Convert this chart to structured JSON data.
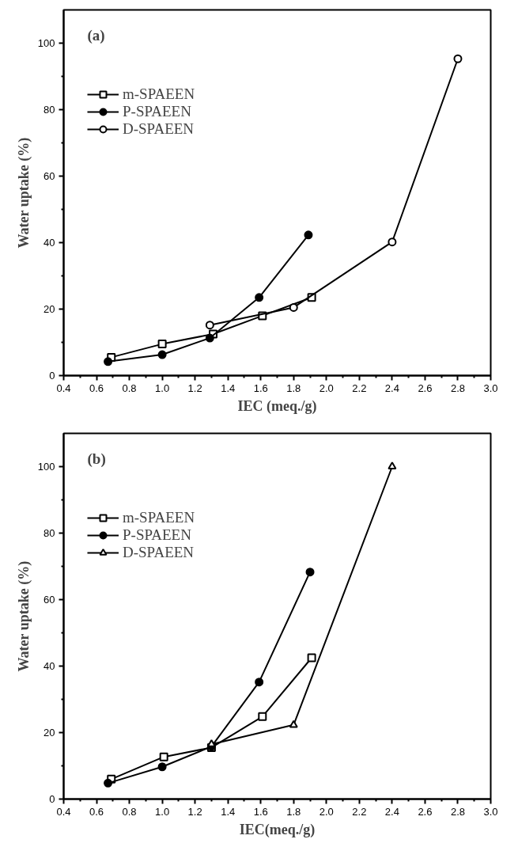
{
  "chart_data": [
    {
      "type": "line",
      "annotations": [
        "(a)"
      ],
      "xlabel": "IEC (meq./g)",
      "ylabel": "Water uptake (%)",
      "xlim": [
        0.4,
        3.0
      ],
      "xticks": [
        {
          "value": 0.4,
          "label": "0.4"
        },
        {
          "value": 0.6,
          "label": "0.6"
        },
        {
          "value": 0.8,
          "label": "0.8"
        },
        {
          "value": 1.0,
          "label": "1.0"
        },
        {
          "value": 1.2,
          "label": "1.2"
        },
        {
          "value": 1.4,
          "label": "1.4"
        },
        {
          "value": 1.6,
          "label": "1.6"
        },
        {
          "value": 1.8,
          "label": "1.8"
        },
        {
          "value": 2.0,
          "label": "2.0"
        },
        {
          "value": 2.2,
          "label": "2.2"
        },
        {
          "value": 2.4,
          "label": "2.4"
        },
        {
          "value": 2.6,
          "label": "2.6"
        },
        {
          "value": 2.8,
          "label": "2.8"
        },
        {
          "value": 3.0,
          "label": "3.0"
        }
      ],
      "ylim": [
        0,
        110
      ],
      "yticks": [
        0,
        20,
        40,
        60,
        80,
        100
      ],
      "grid": false,
      "legend": "top left",
      "line_style": "solid",
      "series": [
        {
          "name": "m-SPAEEN",
          "color": "#000000",
          "marker": "square",
          "x": [
            0.69,
            1.0,
            1.31,
            1.61,
            1.91
          ],
          "values": [
            5.5,
            9.5,
            12.5,
            18,
            23.5
          ]
        },
        {
          "name": "P-SPAEEN",
          "color": "#000000",
          "marker": "circle",
          "x": [
            0.67,
            1.0,
            1.29,
            1.59,
            1.89
          ],
          "values": [
            4.2,
            6.3,
            11.3,
            23.5,
            42.3
          ]
        },
        {
          "name": "D-SPAEEN",
          "color": "#000000",
          "marker": "circle",
          "x": [
            1.29,
            1.8,
            2.4,
            2.8
          ],
          "values": [
            15.2,
            20.5,
            40.2,
            95.3
          ]
        }
      ]
    },
    {
      "type": "line",
      "annotations": [
        "(b)"
      ],
      "xlabel": "IEC(meq./g)",
      "ylabel": "Water uptake (%)",
      "xlim": [
        0.4,
        3.0
      ],
      "xticks": [
        {
          "value": 0.4,
          "label": "0.4"
        },
        {
          "value": 0.6,
          "label": "0.6"
        },
        {
          "value": 0.8,
          "label": "0.8"
        },
        {
          "value": 1.0,
          "label": "1.0"
        },
        {
          "value": 1.2,
          "label": "1.2"
        },
        {
          "value": 1.4,
          "label": "1.4"
        },
        {
          "value": 1.6,
          "label": "1.6"
        },
        {
          "value": 1.8,
          "label": "1.8"
        },
        {
          "value": 2.0,
          "label": "2.0"
        },
        {
          "value": 2.2,
          "label": "2.2"
        },
        {
          "value": 2.4,
          "label": "2.4"
        },
        {
          "value": 2.6,
          "label": "2.6"
        },
        {
          "value": 2.8,
          "label": "2.8"
        },
        {
          "value": 3.0,
          "label": "3.0"
        }
      ],
      "ylim": [
        0,
        110
      ],
      "yticks": [
        0,
        20,
        40,
        60,
        80,
        100
      ],
      "grid": false,
      "legend": "top left",
      "line_style": "solid",
      "series": [
        {
          "name": "m-SPAEEN",
          "color": "#000000",
          "marker": "square",
          "x": [
            0.69,
            1.01,
            1.3,
            1.61,
            1.91
          ],
          "values": [
            6,
            12.7,
            15.5,
            24.8,
            42.5
          ]
        },
        {
          "name": "P-SPAEEN",
          "color": "#000000",
          "marker": "circle",
          "x": [
            0.67,
            1.0,
            1.3,
            1.59,
            1.9
          ],
          "values": [
            4.8,
            9.7,
            15.8,
            35.2,
            68.3
          ]
        },
        {
          "name": "D-SPAEEN",
          "color": "#000000",
          "marker": "triangle",
          "x": [
            1.3,
            1.8,
            2.4
          ],
          "values": [
            16.5,
            22.3,
            100
          ]
        }
      ]
    }
  ]
}
